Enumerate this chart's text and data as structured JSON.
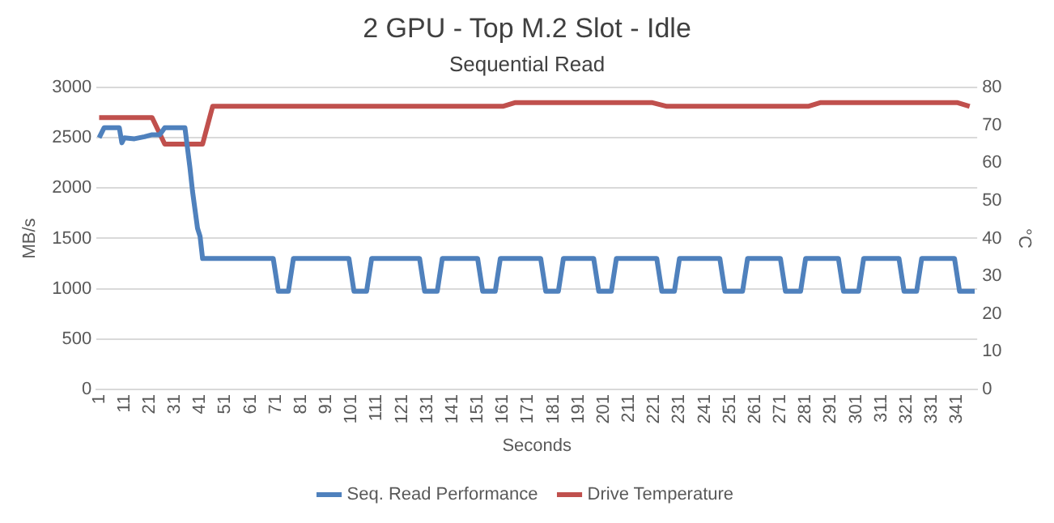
{
  "chart_data": {
    "type": "line",
    "title": "2 GPU - Top M.2 Slot - Idle",
    "subtitle": "Sequential Read",
    "xlabel": "Seconds",
    "ylabel": "MB/s",
    "y2label": "°C",
    "xlim": [
      0,
      349
    ],
    "xticks": [
      1,
      11,
      21,
      31,
      41,
      51,
      61,
      71,
      81,
      91,
      101,
      111,
      121,
      131,
      141,
      151,
      161,
      171,
      181,
      191,
      201,
      211,
      221,
      231,
      241,
      251,
      261,
      271,
      281,
      291,
      301,
      311,
      321,
      331,
      341
    ],
    "ylim": [
      0,
      3000
    ],
    "yticks": [
      0,
      500,
      1000,
      1500,
      2000,
      2500,
      3000
    ],
    "y2lim": [
      0,
      80
    ],
    "y2ticks": [
      0,
      10,
      20,
      30,
      40,
      50,
      60,
      70,
      80
    ],
    "grid": "y",
    "legend": "bottom",
    "marker": "none",
    "line_style": "solid",
    "series": [
      {
        "name": "Seq. Read Performance",
        "color": "#4f81bd",
        "x": [
          1,
          3,
          9,
          10,
          11,
          15,
          19,
          22,
          25,
          27,
          35,
          37,
          38,
          40,
          41,
          42,
          70,
          72,
          76,
          78,
          100,
          102,
          107,
          109,
          128,
          130,
          135,
          137,
          151,
          153,
          158,
          160,
          176,
          178,
          183,
          185,
          197,
          199,
          204,
          206,
          222,
          224,
          229,
          231,
          247,
          249,
          256,
          258,
          271,
          273,
          279,
          281,
          294,
          296,
          302,
          304,
          318,
          320,
          325,
          327,
          340,
          342,
          348
        ],
        "values": [
          2500,
          2600,
          2600,
          2450,
          2500,
          2490,
          2510,
          2530,
          2530,
          2600,
          2600,
          2200,
          1970,
          1600,
          1520,
          1300,
          1300,
          975,
          975,
          1300,
          1300,
          975,
          975,
          1300,
          1300,
          975,
          975,
          1300,
          1300,
          975,
          975,
          1300,
          1300,
          975,
          975,
          1300,
          1300,
          975,
          975,
          1300,
          1300,
          975,
          975,
          1300,
          1300,
          975,
          975,
          1300,
          1300,
          975,
          975,
          1300,
          1300,
          975,
          975,
          1300,
          1300,
          975,
          975,
          1300,
          1300,
          975,
          975
        ]
      },
      {
        "name": "Drive Temperature",
        "color": "#c0504d",
        "axis": "y2",
        "x": [
          1,
          22,
          27,
          42,
          46,
          161,
          166,
          220,
          226,
          282,
          287,
          341,
          346
        ],
        "values": [
          72,
          72,
          65,
          65,
          75,
          75,
          76,
          76,
          75,
          75,
          76,
          76,
          75
        ]
      }
    ]
  }
}
